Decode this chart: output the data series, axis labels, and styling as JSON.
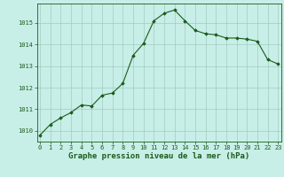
{
  "x": [
    0,
    1,
    2,
    3,
    4,
    5,
    6,
    7,
    8,
    9,
    10,
    11,
    12,
    13,
    14,
    15,
    16,
    17,
    18,
    19,
    20,
    21,
    22,
    23
  ],
  "y": [
    1009.8,
    1010.3,
    1010.6,
    1010.85,
    1011.2,
    1011.15,
    1011.65,
    1011.75,
    1012.2,
    1013.5,
    1014.05,
    1015.1,
    1015.45,
    1015.6,
    1015.1,
    1014.65,
    1014.5,
    1014.45,
    1014.3,
    1014.3,
    1014.25,
    1014.15,
    1013.3,
    1013.1
  ],
  "line_color": "#1a5c1a",
  "marker": "D",
  "marker_size": 1.8,
  "bg_color": "#c8eee8",
  "grid_color": "#a0ccc0",
  "title": "Graphe pression niveau de la mer (hPa)",
  "ylim_min": 1009.5,
  "ylim_max": 1015.9,
  "yticks": [
    1010,
    1011,
    1012,
    1013,
    1014,
    1015
  ],
  "xtick_labels": [
    "0",
    "1",
    "2",
    "3",
    "4",
    "5",
    "6",
    "7",
    "8",
    "9",
    "10",
    "11",
    "12",
    "13",
    "14",
    "15",
    "16",
    "17",
    "18",
    "19",
    "20",
    "21",
    "22",
    "23"
  ],
  "title_fontsize": 6.5,
  "tick_fontsize": 5.0,
  "title_color": "#1a5c1a",
  "tick_color": "#1a5c1a",
  "line_width": 0.8
}
